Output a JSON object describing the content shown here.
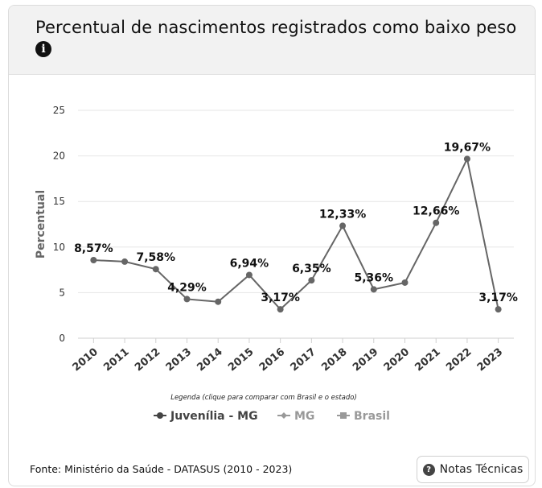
{
  "header": {
    "title": "Percentual de nascimentos registrados como baixo peso",
    "info_icon": "info-icon"
  },
  "legend": {
    "caption": "Legenda (clique para comparar com Brasil e o estado)",
    "items": [
      {
        "label": "Juvenília - MG",
        "marker": "circle",
        "active": true
      },
      {
        "label": "MG",
        "marker": "diamond",
        "active": false
      },
      {
        "label": "Brasil",
        "marker": "square",
        "active": false
      }
    ]
  },
  "footer": {
    "source": "Fonte: Ministério da Saúde - DATASUS (2010 - 2023)",
    "notes_label": "Notas Técnicas",
    "notes_icon": "question-circle-icon"
  },
  "colors": {
    "series_line": "#666666",
    "inactive_legend": "#999999",
    "grid": "#e6e6e6",
    "axis_text": "#333333"
  },
  "chart_data": {
    "type": "line",
    "title": "Percentual de nascimentos registrados como baixo peso",
    "ylabel": "Percentual",
    "xlabel": "",
    "ylim": [
      0,
      25
    ],
    "yticks": [
      "0",
      "5",
      "10",
      "15",
      "20",
      "25"
    ],
    "categories": [
      "2010",
      "2011",
      "2012",
      "2013",
      "2014",
      "2015",
      "2016",
      "2017",
      "2018",
      "2019",
      "2020",
      "2021",
      "2022",
      "2023"
    ],
    "series": [
      {
        "name": "Juvenília - MG",
        "values": [
          8.57,
          8.4,
          7.58,
          4.29,
          4.0,
          6.94,
          3.17,
          6.35,
          12.33,
          5.36,
          6.1,
          12.66,
          19.67,
          3.17
        ],
        "data_labels": [
          "8,57%",
          "",
          "7,58%",
          "4,29%",
          "",
          "6,94%",
          "3,17%",
          "6,35%",
          "12,33%",
          "5,36%",
          "",
          "12,66%",
          "19,67%",
          "3,17%"
        ]
      }
    ],
    "grid": true,
    "legend_position": "bottom"
  }
}
